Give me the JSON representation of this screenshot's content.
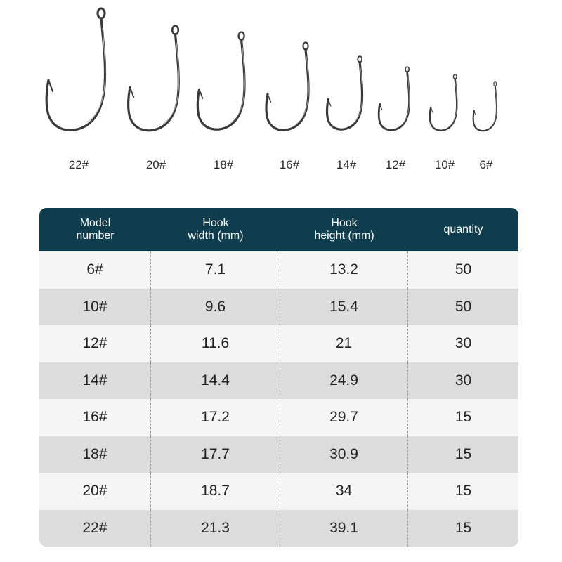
{
  "hook_sizes": [
    "22#",
    "20#",
    "18#",
    "16#",
    "14#",
    "12#",
    "10#",
    "6#"
  ],
  "table": {
    "headers": [
      "Model\nnumber",
      "Hook\nwidth (mm)",
      "Hook\nheight (mm)",
      "quantity"
    ],
    "rows": [
      [
        "6#",
        "7.1",
        "13.2",
        "50"
      ],
      [
        "10#",
        "9.6",
        "15.4",
        "50"
      ],
      [
        "12#",
        "11.6",
        "21",
        "30"
      ],
      [
        "14#",
        "14.4",
        "24.9",
        "30"
      ],
      [
        "16#",
        "17.2",
        "29.7",
        "15"
      ],
      [
        "18#",
        "17.7",
        "30.9",
        "15"
      ],
      [
        "20#",
        "18.7",
        "34",
        "15"
      ],
      [
        "22#",
        "21.3",
        "39.1",
        "15"
      ]
    ]
  },
  "colors": {
    "header_bg": "#0f3d4e",
    "row_light": "#f5f5f5",
    "row_dark": "#dcdcdc",
    "hook_metal": "#3a3a3a"
  }
}
